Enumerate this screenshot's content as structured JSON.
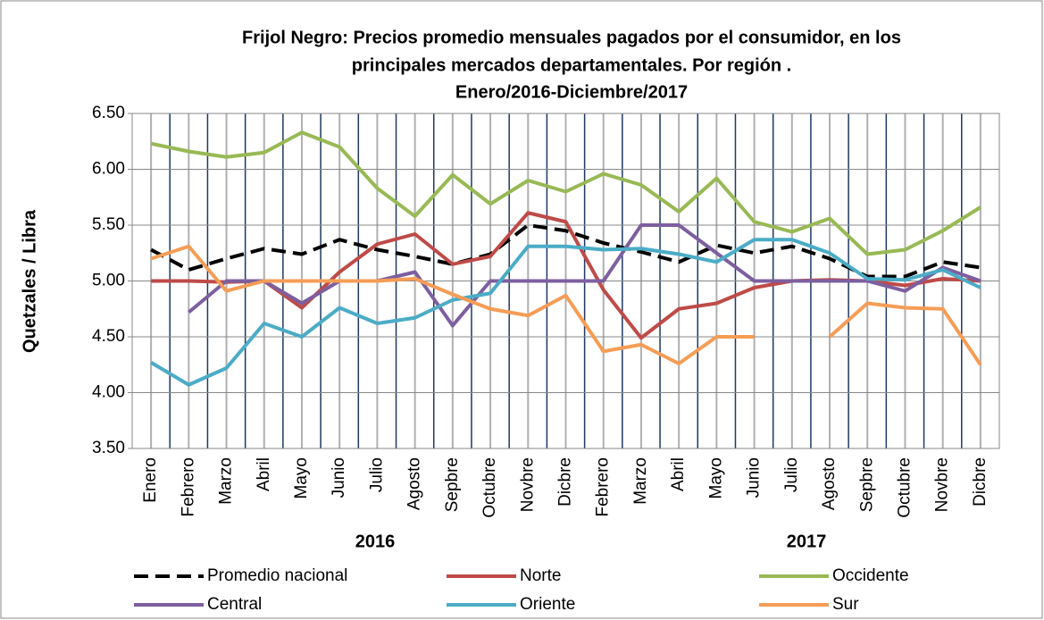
{
  "chart_data": {
    "type": "line",
    "title": [
      "Frijol Negro: Precios promedio mensuales pagados por el consumidor, en los",
      "principales mercados departamentales.  Por región .",
      "Enero/2016-Diciembre/2017"
    ],
    "y_label": "Quetzales / Libra",
    "categories": [
      "Enero",
      "Febrero",
      "Marzo",
      "Abril",
      "Mayo",
      "Junio",
      "Julio",
      "Agosto",
      "Sepbre",
      "Octubre",
      "Novbre",
      "Dicbre",
      "Febrero",
      "Marzo",
      "Abril",
      "Mayo",
      "Junio",
      "Julio",
      "Agosto",
      "Sepbre",
      "Octubre",
      "Novbre",
      "Dicbre"
    ],
    "year_labels": [
      "2016",
      "2017"
    ],
    "ylim": [
      3.5,
      6.5
    ],
    "yticks": [
      {
        "value": 3.5,
        "label": "3.50"
      },
      {
        "value": 4,
        "label": "4.00"
      },
      {
        "value": 4.5,
        "label": "4.50"
      },
      {
        "value": 5,
        "label": "5.00"
      },
      {
        "value": 5.5,
        "label": "5.50"
      },
      {
        "value": 6,
        "label": "6.00"
      },
      {
        "value": 6.5,
        "label": "6.50"
      }
    ],
    "grid": true,
    "legend": "bottom",
    "series": [
      {
        "name": "Promedio nacional",
        "color": "#000000",
        "dash": "dashed",
        "values": [
          5.28,
          5.1,
          5.2,
          5.29,
          5.24,
          5.37,
          5.28,
          5.22,
          5.15,
          5.24,
          5.5,
          5.45,
          5.34,
          5.26,
          5.17,
          5.32,
          5.25,
          5.31,
          5.2,
          5.04,
          5.04,
          5.17,
          5.12
        ]
      },
      {
        "name": "Norte",
        "color": "#be4b48",
        "values": [
          5.0,
          5.0,
          4.99,
          5.0,
          4.76,
          5.08,
          5.33,
          5.42,
          5.15,
          5.22,
          5.61,
          5.53,
          4.92,
          4.49,
          4.75,
          4.8,
          4.94,
          5.0,
          5.01,
          5.0,
          4.96,
          5.02,
          5.0
        ]
      },
      {
        "name": "Occidente",
        "color": "#98b954",
        "values": [
          6.23,
          6.16,
          6.11,
          6.15,
          6.33,
          6.2,
          5.83,
          5.58,
          5.95,
          5.69,
          5.9,
          5.8,
          5.96,
          5.86,
          5.62,
          5.92,
          5.53,
          5.44,
          5.56,
          5.24,
          5.28,
          5.45,
          5.66
        ]
      },
      {
        "name": "Central",
        "color": "#7d5fa0",
        "values": [
          null,
          4.72,
          5.0,
          5.0,
          4.8,
          5.0,
          5.0,
          5.08,
          4.6,
          5.0,
          5.0,
          5.0,
          5.0,
          5.5,
          5.5,
          5.25,
          5.0,
          5.0,
          5.0,
          5.0,
          4.91,
          5.12,
          5.0
        ]
      },
      {
        "name": "Oriente",
        "color": "#4bacc6",
        "values": [
          4.27,
          4.07,
          4.22,
          4.62,
          4.5,
          4.76,
          4.62,
          4.67,
          4.83,
          4.89,
          5.31,
          5.31,
          5.28,
          5.29,
          5.24,
          5.17,
          5.37,
          5.37,
          5.25,
          5.02,
          5.01,
          5.1,
          4.94
        ]
      },
      {
        "name": "Sur",
        "color": "#f59d56",
        "values": [
          5.2,
          5.31,
          4.91,
          5.0,
          5.0,
          5.0,
          5.0,
          5.02,
          4.88,
          4.75,
          4.69,
          4.87,
          4.37,
          4.43,
          4.26,
          4.5,
          4.5,
          null,
          4.5,
          4.8,
          4.76,
          4.75,
          4.25
        ]
      }
    ]
  }
}
